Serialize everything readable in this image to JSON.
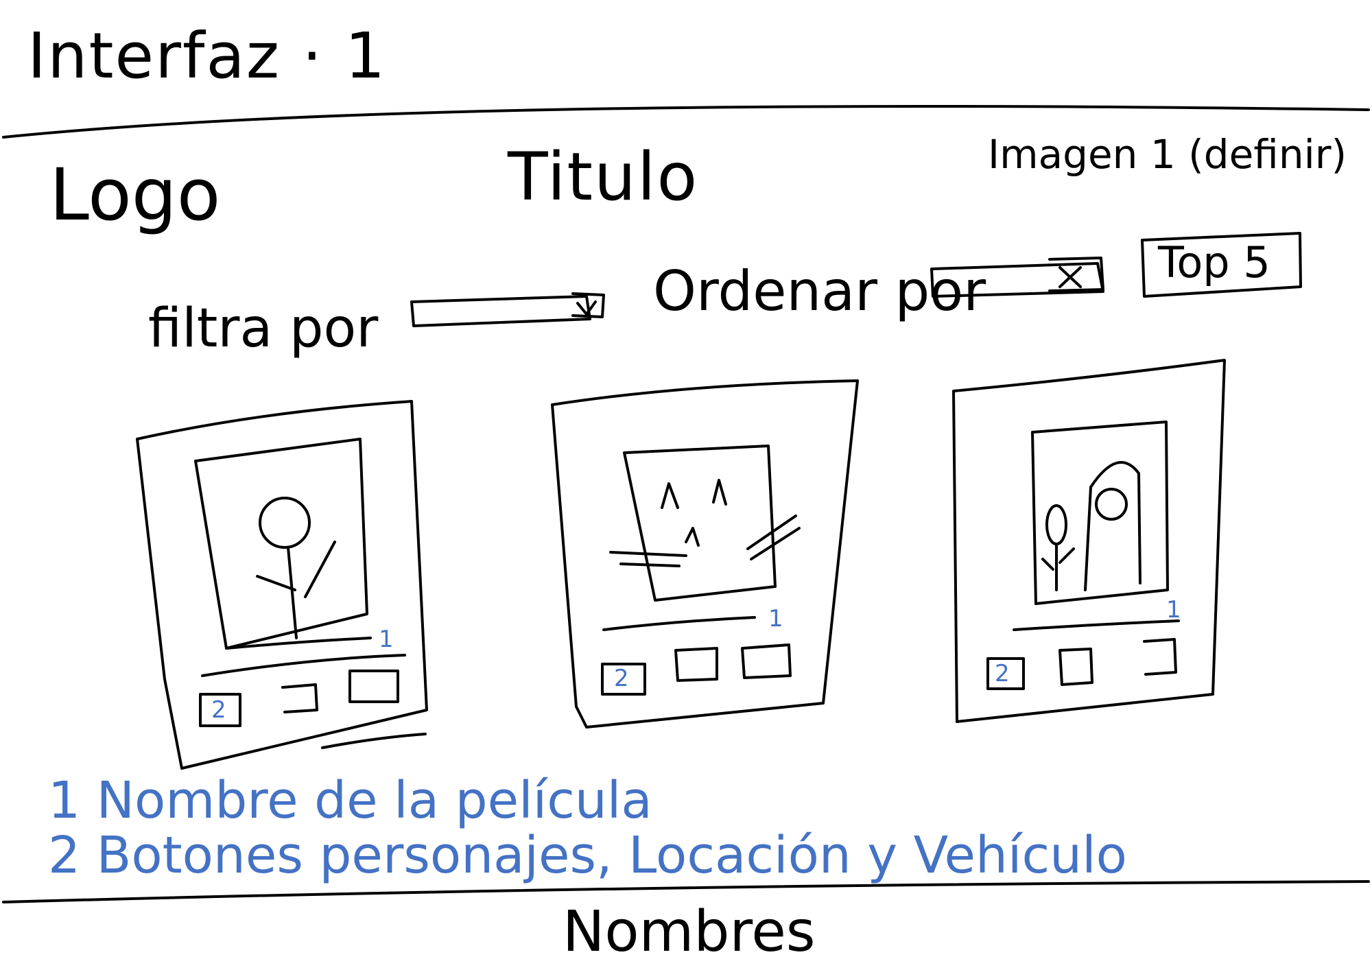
{
  "header": {
    "sketch_title": "Interfaz · 1",
    "logo_label": "Logo",
    "title_label": "Titulo",
    "image_label": "Imagen 1 (definir)"
  },
  "controls": {
    "filter_label": "filtra por",
    "sort_label": "Ordenar por",
    "top_button": "Top 5"
  },
  "cards": [
    {
      "movie_marker": "1",
      "button_marker": "2"
    },
    {
      "movie_marker": "1",
      "button_marker": "2"
    },
    {
      "movie_marker": "1",
      "button_marker": "2"
    }
  ],
  "notes": [
    "1 Nombre de la película",
    "2 Botones personajes, Locación y Vehículo"
  ],
  "footer": {
    "names_label": "Nombres"
  },
  "colors": {
    "ink": "#000000",
    "annotation": "#4472c4"
  }
}
